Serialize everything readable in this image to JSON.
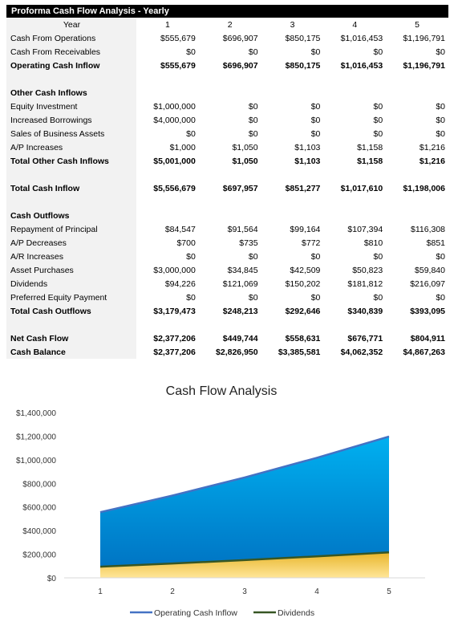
{
  "sheet": {
    "title": "Proforma Cash Flow Analysis - Yearly",
    "header": {
      "label": "Year",
      "years": [
        "1",
        "2",
        "3",
        "4",
        "5"
      ]
    },
    "rows": [
      {
        "label": "Cash From Operations",
        "values": [
          "$555,679",
          "$696,907",
          "$850,175",
          "$1,016,453",
          "$1,196,791"
        ],
        "bold": false
      },
      {
        "label": "Cash From Receivables",
        "values": [
          "$0",
          "$0",
          "$0",
          "$0",
          "$0"
        ],
        "bold": false
      },
      {
        "label": "Operating Cash Inflow",
        "values": [
          "$555,679",
          "$696,907",
          "$850,175",
          "$1,016,453",
          "$1,196,791"
        ],
        "bold": true
      },
      {
        "blank": true
      },
      {
        "label": "Other Cash Inflows",
        "values": [],
        "bold": true
      },
      {
        "label": "Equity Investment",
        "values": [
          "$1,000,000",
          "$0",
          "$0",
          "$0",
          "$0"
        ],
        "bold": false
      },
      {
        "label": "Increased Borrowings",
        "values": [
          "$4,000,000",
          "$0",
          "$0",
          "$0",
          "$0"
        ],
        "bold": false
      },
      {
        "label": "Sales of Business Assets",
        "values": [
          "$0",
          "$0",
          "$0",
          "$0",
          "$0"
        ],
        "bold": false
      },
      {
        "label": "A/P Increases",
        "values": [
          "$1,000",
          "$1,050",
          "$1,103",
          "$1,158",
          "$1,216"
        ],
        "bold": false
      },
      {
        "label": "Total Other Cash Inflows",
        "values": [
          "$5,001,000",
          "$1,050",
          "$1,103",
          "$1,158",
          "$1,216"
        ],
        "bold": true
      },
      {
        "blank": true
      },
      {
        "label": "Total Cash Inflow",
        "values": [
          "$5,556,679",
          "$697,957",
          "$851,277",
          "$1,017,610",
          "$1,198,006"
        ],
        "bold": true
      },
      {
        "blank": true
      },
      {
        "label": "Cash Outflows",
        "values": [],
        "bold": true
      },
      {
        "label": "Repayment of Principal",
        "values": [
          "$84,547",
          "$91,564",
          "$99,164",
          "$107,394",
          "$116,308"
        ],
        "bold": false
      },
      {
        "label": "A/P Decreases",
        "values": [
          "$700",
          "$735",
          "$772",
          "$810",
          "$851"
        ],
        "bold": false
      },
      {
        "label": "A/R Increases",
        "values": [
          "$0",
          "$0",
          "$0",
          "$0",
          "$0"
        ],
        "bold": false
      },
      {
        "label": "Asset Purchases",
        "values": [
          "$3,000,000",
          "$34,845",
          "$42,509",
          "$50,823",
          "$59,840"
        ],
        "bold": false
      },
      {
        "label": "Dividends",
        "values": [
          "$94,226",
          "$121,069",
          "$150,202",
          "$181,812",
          "$216,097"
        ],
        "bold": false
      },
      {
        "label": "Preferred Equity Payment",
        "values": [
          "$0",
          "$0",
          "$0",
          "$0",
          "$0"
        ],
        "bold": false
      },
      {
        "label": "Total Cash Outflows",
        "values": [
          "$3,179,473",
          "$248,213",
          "$292,646",
          "$340,839",
          "$393,095"
        ],
        "bold": true
      },
      {
        "blank": true
      },
      {
        "label": "Net Cash Flow",
        "values": [
          "$2,377,206",
          "$449,744",
          "$558,631",
          "$676,771",
          "$804,911"
        ],
        "bold": true
      },
      {
        "label": "Cash Balance",
        "values": [
          "$2,377,206",
          "$2,826,950",
          "$3,385,581",
          "$4,062,352",
          "$4,867,263"
        ],
        "bold": true
      }
    ]
  },
  "chart_data": {
    "type": "area",
    "title": "Cash Flow Analysis",
    "x": [
      1,
      2,
      3,
      4,
      5
    ],
    "x_tick_labels": [
      "1",
      "2",
      "3",
      "4",
      "5"
    ],
    "y_tick_labels": [
      "$0",
      "$200,000",
      "$400,000",
      "$600,000",
      "$800,000",
      "$1,000,000",
      "$1,200,000",
      "$1,400,000"
    ],
    "ylim": [
      0,
      1400000
    ],
    "grid": false,
    "legend": "bottom",
    "series": [
      {
        "name": "Operating Cash Inflow",
        "values": [
          555679,
          696907,
          850175,
          1016453,
          1196791
        ],
        "line_color": "#4472c4",
        "fill_top": "#00b0f0",
        "fill_bottom": "#0070c0"
      },
      {
        "name": "Dividends",
        "values": [
          94226,
          121069,
          150202,
          181812,
          216097
        ],
        "line_color": "#375623",
        "fill_top": "#e8b52a",
        "fill_bottom": "#ffe699"
      }
    ]
  }
}
